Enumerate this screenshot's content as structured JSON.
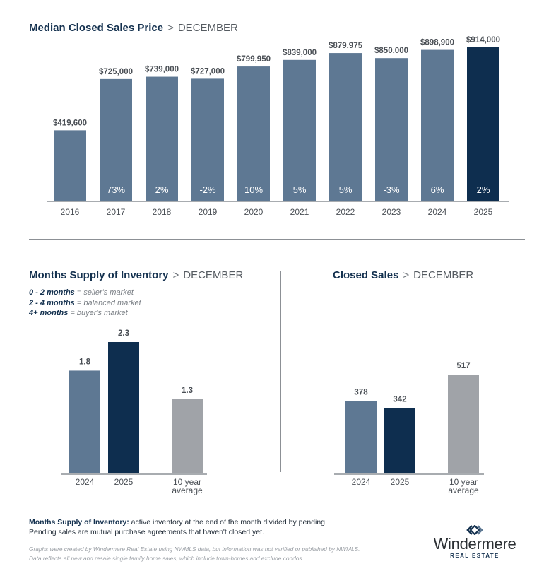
{
  "colors": {
    "bar_primary": "#5e7893",
    "bar_highlight": "#0e2e4f",
    "bar_average": "#a0a3a8",
    "axis": "#8c9095",
    "label_text": "#4a4f55",
    "pct_text": "#ffffff",
    "title_text": "#14314f"
  },
  "chart_data": [
    {
      "id": "median-price",
      "type": "bar",
      "title": "Median Closed Sales Price",
      "separator": ">",
      "subtitle": "DECEMBER",
      "categories": [
        "2016",
        "2017",
        "2018",
        "2019",
        "2020",
        "2021",
        "2022",
        "2023",
        "2024",
        "2025"
      ],
      "values": [
        419600,
        725000,
        739000,
        727000,
        799950,
        839000,
        879975,
        850000,
        898900,
        914000
      ],
      "value_labels": [
        "$419,600",
        "$725,000",
        "$739,000",
        "$727,000",
        "$799,950",
        "$839,000",
        "$879,975",
        "$850,000",
        "$898,900",
        "$914,000"
      ],
      "change_labels": [
        "",
        "73%",
        "2%",
        "-2%",
        "10%",
        "5%",
        "5%",
        "-3%",
        "6%",
        "2%"
      ],
      "highlight_index": 9,
      "ylim": [
        0,
        1000000
      ],
      "xlabel": "",
      "ylabel": "",
      "grid": false,
      "legend": "none"
    },
    {
      "id": "months-supply",
      "type": "bar",
      "title": "Months Supply of Inventory",
      "separator": ">",
      "subtitle": "DECEMBER",
      "categories": [
        "2024",
        "2025",
        "10 year average"
      ],
      "category_lines": [
        [
          "2024"
        ],
        [
          "2025"
        ],
        [
          "10 year",
          "average"
        ]
      ],
      "values": [
        1.8,
        2.3,
        1.3
      ],
      "value_labels": [
        "1.8",
        "2.3",
        "1.3"
      ],
      "bar_kinds": [
        "primary",
        "highlight",
        "average"
      ],
      "ylim": [
        0,
        2.5
      ],
      "grid": false,
      "legend": "none"
    },
    {
      "id": "closed-sales",
      "type": "bar",
      "title": "Closed Sales",
      "separator": ">",
      "subtitle": "DECEMBER",
      "categories": [
        "2024",
        "2025",
        "10 year average"
      ],
      "category_lines": [
        [
          "2024"
        ],
        [
          "2025"
        ],
        [
          "10 year",
          "average"
        ]
      ],
      "values": [
        378,
        342,
        517
      ],
      "value_labels": [
        "378",
        "342",
        "517"
      ],
      "bar_kinds": [
        "primary",
        "highlight",
        "average"
      ],
      "ylim": [
        0,
        560
      ],
      "grid": false,
      "legend": "none"
    }
  ],
  "legend_inventory": [
    {
      "range": "0 - 2 months",
      "eq": " = ",
      "meaning": "seller's market"
    },
    {
      "range": "2 - 4 months",
      "eq": " = ",
      "meaning": "balanced market"
    },
    {
      "range": "4+ months",
      "eq": " = ",
      "meaning": "buyer's market"
    }
  ],
  "footnote": {
    "term": "Months Supply of Inventory:",
    "definition": " active inventory at the end of the month divided by pending.",
    "line2": "Pending sales are mutual purchase agreements that haven't closed yet."
  },
  "disclaimer": {
    "line1": "Graphs were created by Windermere Real Estate using NWMLS data, but information was not verified or published by NWMLS.",
    "line2": "Data reflects all new and resale single family home sales, which include town-homes and exclude condos."
  },
  "logo": {
    "name": "Windermere",
    "tagline": "REAL ESTATE"
  }
}
